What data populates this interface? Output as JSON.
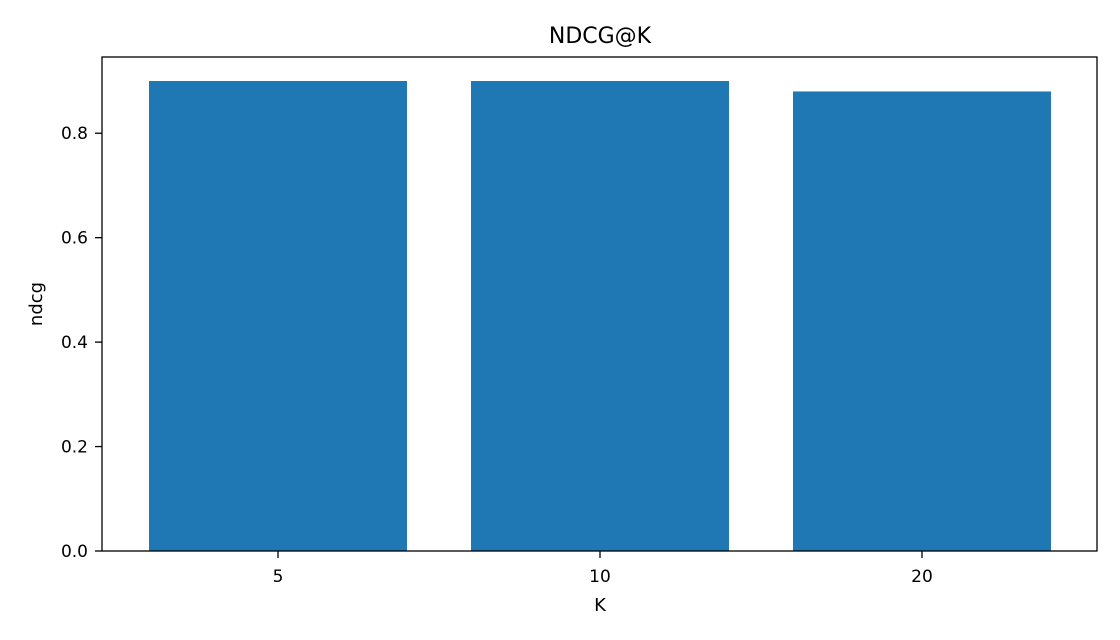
{
  "chart_data": {
    "type": "bar",
    "title": "NDCG@K",
    "xlabel": "K",
    "ylabel": "ndcg",
    "categories": [
      "5",
      "10",
      "20"
    ],
    "values": [
      0.9,
      0.9,
      0.88
    ],
    "ylim": [
      0,
      0.9
    ],
    "yticks": [
      0.0,
      0.2,
      0.4,
      0.6,
      0.8
    ],
    "ytick_labels": [
      "0.0",
      "0.2",
      "0.4",
      "0.6",
      "0.8"
    ],
    "bar_color": "#1f77b4",
    "grid": false,
    "legend": "none"
  }
}
